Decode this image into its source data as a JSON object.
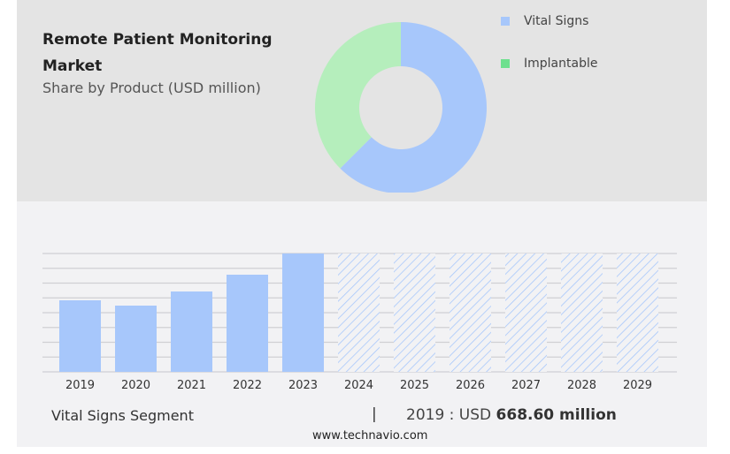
{
  "header": {
    "title": "Remote Patient Monitoring Market",
    "subtitle": "Share by Product (USD million)"
  },
  "chart_data": [
    {
      "type": "pie",
      "variant": "donut",
      "title": "Share by Product (USD million)",
      "legend": [
        {
          "label": "Vital Signs",
          "color": "#a7c7fb"
        },
        {
          "label": "Implantable",
          "color": "#6ee08e"
        }
      ],
      "slices": [
        {
          "label": "Vital Signs",
          "share": 62.5,
          "color": "#a7c7fb"
        },
        {
          "label": "Implantable",
          "share": 37.5,
          "color": "#b5eebc"
        }
      ]
    },
    {
      "type": "bar",
      "title": "Vital Signs Segment",
      "xlabel": "",
      "ylabel": "USD million",
      "categories": [
        "2019",
        "2020",
        "2021",
        "2022",
        "2023",
        "2024",
        "2025",
        "2026",
        "2027",
        "2028",
        "2029"
      ],
      "values": [
        668.6,
        619,
        751,
        908,
        1106,
        null,
        null,
        null,
        null,
        null,
        null
      ],
      "forecast": [
        false,
        false,
        false,
        false,
        false,
        true,
        true,
        true,
        true,
        true,
        true
      ],
      "ylim": [
        0,
        1106
      ],
      "grid": true,
      "color": "#a7c7fb"
    }
  ],
  "footer": {
    "segment": "Vital Signs Segment",
    "separator": "|",
    "year_prefix": "2019 : USD",
    "value": "668.60 million",
    "site": "www.technavio.com"
  }
}
